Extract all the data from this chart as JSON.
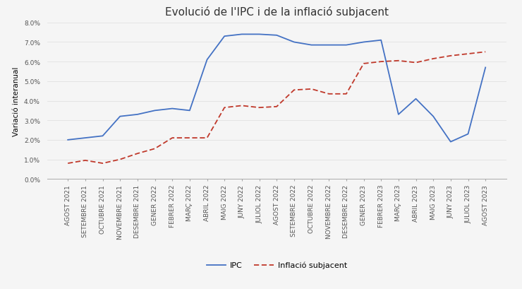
{
  "title": "Evolució de l'IPC i de la inflació subjacent",
  "ylabel": "Variació interanual",
  "labels": [
    "AGOST 2021",
    "SETEMBRE 2021",
    "OCTUBRE 2021",
    "NOVEMBRE 2021",
    "DESEMBRE 2021",
    "GENER 2022",
    "FEBRER 2022",
    "MARÇ 2022",
    "ABRIL 2022",
    "MAIG 2022",
    "JUNY 2022",
    "JULIOL 2022",
    "AGOST 2022",
    "SETEMBRE 2022",
    "OCTUBRE 2022",
    "NOVEMBRE 2022",
    "DESEMBRE 2022",
    "GENER 2023",
    "FEBRER 2023",
    "MARÇ 2023",
    "ABRIL 2023",
    "MAIG 2023",
    "JUNY 2023",
    "JULIOL 2023",
    "AGOST 2023"
  ],
  "ipc": [
    2.0,
    2.1,
    2.2,
    3.2,
    3.3,
    3.5,
    3.6,
    3.5,
    6.1,
    7.3,
    7.4,
    7.4,
    7.35,
    7.0,
    6.85,
    6.85,
    6.85,
    7.0,
    7.1,
    3.3,
    4.1,
    3.2,
    1.9,
    2.3,
    5.7
  ],
  "subjacent": [
    0.8,
    0.95,
    0.8,
    1.0,
    1.3,
    1.55,
    2.1,
    2.1,
    2.1,
    3.65,
    3.75,
    3.65,
    3.7,
    4.55,
    4.6,
    4.35,
    4.35,
    5.9,
    6.0,
    6.05,
    5.95,
    6.15,
    6.3,
    6.4,
    6.5
  ],
  "ipc_color": "#4472c4",
  "subjacent_color": "#c0392b",
  "background_color": "#f5f5f5",
  "ylim": [
    0.0,
    8.0
  ],
  "yticks": [
    0.0,
    1.0,
    2.0,
    3.0,
    4.0,
    5.0,
    6.0,
    7.0,
    8.0
  ],
  "legend_ipc": "IPC",
  "legend_subjacent": "Inflació subjacent",
  "title_fontsize": 11,
  "axis_fontsize": 7.5,
  "tick_fontsize": 6.5
}
